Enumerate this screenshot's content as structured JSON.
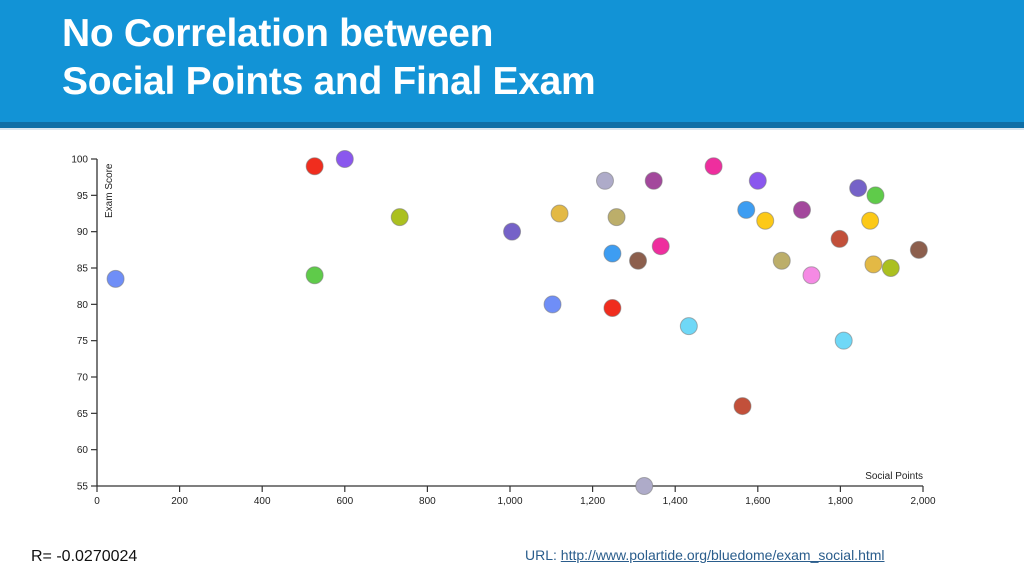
{
  "header": {
    "title_line1": "No Correlation between",
    "title_line2": "Social Points and Final Exam",
    "bg_color": "#1293d6"
  },
  "footer": {
    "r_value": "R= -0.0270024",
    "url_label": "URL:",
    "url_text": "http://www.polartide.org/bluedome/exam_social.html"
  },
  "chart_data": {
    "type": "scatter",
    "title": "No Correlation between Social Points and Final Exam",
    "xlabel": "Social Points",
    "ylabel": "Exam Score",
    "xlim": [
      0,
      2000
    ],
    "ylim": [
      55,
      100
    ],
    "x_ticks": [
      0,
      200,
      400,
      600,
      800,
      1000,
      1200,
      1400,
      1600,
      1800,
      2000
    ],
    "x_tick_labels": [
      "0",
      "200",
      "400",
      "600",
      "800",
      "1,000",
      "1,200",
      "1,400",
      "1,600",
      "1,800",
      "2,000"
    ],
    "y_ticks": [
      55,
      60,
      65,
      70,
      75,
      80,
      85,
      90,
      95,
      100
    ],
    "grid": false,
    "legend": "none",
    "annotation": "R= -0.0270024",
    "points": [
      {
        "x": 45,
        "y": 83.5,
        "color": "#6f8ef7"
      },
      {
        "x": 527,
        "y": 99,
        "color": "#f02d1e"
      },
      {
        "x": 527,
        "y": 84,
        "color": "#5fcb4a"
      },
      {
        "x": 600,
        "y": 100,
        "color": "#8a57ee"
      },
      {
        "x": 733,
        "y": 92,
        "color": "#abc020"
      },
      {
        "x": 1005,
        "y": 90,
        "color": "#7562c8"
      },
      {
        "x": 1103,
        "y": 80,
        "color": "#6f8ef7"
      },
      {
        "x": 1120,
        "y": 92.5,
        "color": "#e3b945"
      },
      {
        "x": 1230,
        "y": 97,
        "color": "#aeabc9"
      },
      {
        "x": 1248,
        "y": 87,
        "color": "#3d9df2"
      },
      {
        "x": 1248,
        "y": 79.5,
        "color": "#f02d1e"
      },
      {
        "x": 1258,
        "y": 92,
        "color": "#bcae6a"
      },
      {
        "x": 1310,
        "y": 86,
        "color": "#8c5f4d"
      },
      {
        "x": 1325,
        "y": 55,
        "color": "#aeabc9"
      },
      {
        "x": 1348,
        "y": 97,
        "color": "#a3489c"
      },
      {
        "x": 1365,
        "y": 88,
        "color": "#ee2e9e"
      },
      {
        "x": 1433,
        "y": 77,
        "color": "#6fd8f7"
      },
      {
        "x": 1493,
        "y": 99,
        "color": "#ee2e9e"
      },
      {
        "x": 1563,
        "y": 66,
        "color": "#c2503a"
      },
      {
        "x": 1572,
        "y": 93,
        "color": "#3d9df2"
      },
      {
        "x": 1600,
        "y": 97,
        "color": "#8a57ee"
      },
      {
        "x": 1618,
        "y": 91.5,
        "color": "#fcc917"
      },
      {
        "x": 1658,
        "y": 86,
        "color": "#bcae6a"
      },
      {
        "x": 1707,
        "y": 93,
        "color": "#a3489c"
      },
      {
        "x": 1730,
        "y": 84,
        "color": "#f58ae4"
      },
      {
        "x": 1798,
        "y": 89,
        "color": "#c2503a"
      },
      {
        "x": 1808,
        "y": 75,
        "color": "#6fd8f7"
      },
      {
        "x": 1843,
        "y": 96,
        "color": "#7562c8"
      },
      {
        "x": 1872,
        "y": 91.5,
        "color": "#fcc917"
      },
      {
        "x": 1880,
        "y": 85.5,
        "color": "#e3b945"
      },
      {
        "x": 1885,
        "y": 95,
        "color": "#5fcb4a"
      },
      {
        "x": 1922,
        "y": 85,
        "color": "#abc020"
      },
      {
        "x": 1990,
        "y": 87.5,
        "color": "#8c5f4d"
      }
    ]
  }
}
